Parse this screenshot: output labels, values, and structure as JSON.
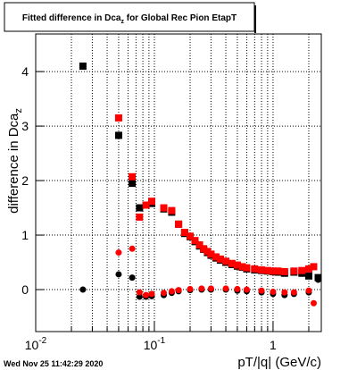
{
  "chart_data": {
    "type": "scatter",
    "title": [
      "Fitted difference in Dca",
      "z",
      " for Global Rec Pion EtapT"
    ],
    "ylabel": [
      "difference in Dca",
      "z"
    ],
    "xlabel": "pT/|q| (GeV/c)",
    "footer": "Wed Nov 25 11:42:29 2020",
    "xscale": "log",
    "grid": true,
    "xlim": [
      0.01,
      2.55
    ],
    "ylim": [
      -0.77,
      4.69
    ],
    "xticks": [
      {
        "value": 0.01,
        "label": "10",
        "exponent": "-2"
      },
      {
        "value": 0.1,
        "label": "10",
        "exponent": "-1"
      },
      1
    ],
    "xminorticks": [
      0.02,
      0.03,
      0.04,
      0.05,
      0.06,
      0.07,
      0.08,
      0.09,
      0.2,
      0.3,
      0.4,
      0.5,
      0.6,
      0.7,
      0.8,
      0.9,
      2
    ],
    "yticks": [
      0,
      1,
      2,
      3,
      4
    ],
    "series": [
      {
        "color": "#000000",
        "marker": "square",
        "x": [
          0.025,
          0.05,
          0.065,
          0.075,
          0.085,
          0.095,
          0.12,
          0.14,
          0.16,
          0.18,
          0.2,
          0.22,
          0.24,
          0.26,
          0.28,
          0.3,
          0.33,
          0.36,
          0.4,
          0.45,
          0.5,
          0.55,
          0.6,
          0.7,
          0.8,
          0.9,
          1.0,
          1.1,
          1.25,
          1.5,
          1.75,
          2.0,
          2.4
        ],
        "values": [
          4.1,
          2.83,
          1.95,
          1.5,
          1.55,
          1.58,
          1.48,
          1.42,
          1.2,
          1.03,
          0.97,
          0.88,
          0.8,
          0.74,
          0.68,
          0.63,
          0.58,
          0.54,
          0.5,
          0.46,
          0.43,
          0.41,
          0.38,
          0.36,
          0.35,
          0.34,
          0.33,
          0.32,
          0.3,
          0.32,
          0.3,
          0.25,
          0.22
        ]
      },
      {
        "color": "#ff0000",
        "marker": "square",
        "x": [
          0.05,
          0.065,
          0.075,
          0.085,
          0.095,
          0.12,
          0.14,
          0.16,
          0.18,
          0.2,
          0.22,
          0.24,
          0.26,
          0.28,
          0.3,
          0.33,
          0.36,
          0.4,
          0.45,
          0.5,
          0.55,
          0.6,
          0.7,
          0.8,
          0.9,
          1.0,
          1.1,
          1.25,
          1.5,
          1.75,
          2.0,
          2.2
        ],
        "values": [
          3.15,
          2.07,
          1.33,
          1.55,
          1.62,
          1.5,
          1.45,
          1.2,
          1.05,
          0.98,
          0.9,
          0.82,
          0.75,
          0.7,
          0.65,
          0.6,
          0.56,
          0.52,
          0.48,
          0.45,
          0.42,
          0.4,
          0.38,
          0.36,
          0.35,
          0.34,
          0.34,
          0.33,
          0.34,
          0.35,
          0.38,
          0.42
        ]
      },
      {
        "color": "#000000",
        "marker": "circle",
        "x": [
          0.025,
          0.05,
          0.065,
          0.075,
          0.085,
          0.095,
          0.12,
          0.14,
          0.16,
          0.2,
          0.25,
          0.3,
          0.4,
          0.5,
          0.6,
          0.8,
          1.0,
          1.25,
          1.5,
          2.0,
          2.4
        ],
        "values": [
          0,
          0.28,
          0.22,
          -0.13,
          -0.13,
          -0.12,
          -0.1,
          -0.06,
          -0.03,
          -0.01,
          0,
          0,
          0,
          -0.02,
          -0.03,
          -0.05,
          -0.08,
          -0.1,
          -0.08,
          -0.05,
          0.18
        ]
      },
      {
        "color": "#ff0000",
        "marker": "circle",
        "x": [
          0.05,
          0.065,
          0.075,
          0.085,
          0.095,
          0.12,
          0.14,
          0.16,
          0.2,
          0.25,
          0.3,
          0.4,
          0.5,
          0.6,
          0.8,
          1.0,
          1.25,
          1.5,
          2.0,
          2.2
        ],
        "values": [
          0.68,
          0.75,
          -0.05,
          -0.1,
          -0.08,
          -0.06,
          -0.03,
          -0.01,
          0.01,
          0.02,
          0.02,
          0.02,
          0.01,
          0,
          -0.02,
          -0.04,
          -0.05,
          -0.05,
          -0.02,
          -0.25
        ]
      }
    ]
  }
}
